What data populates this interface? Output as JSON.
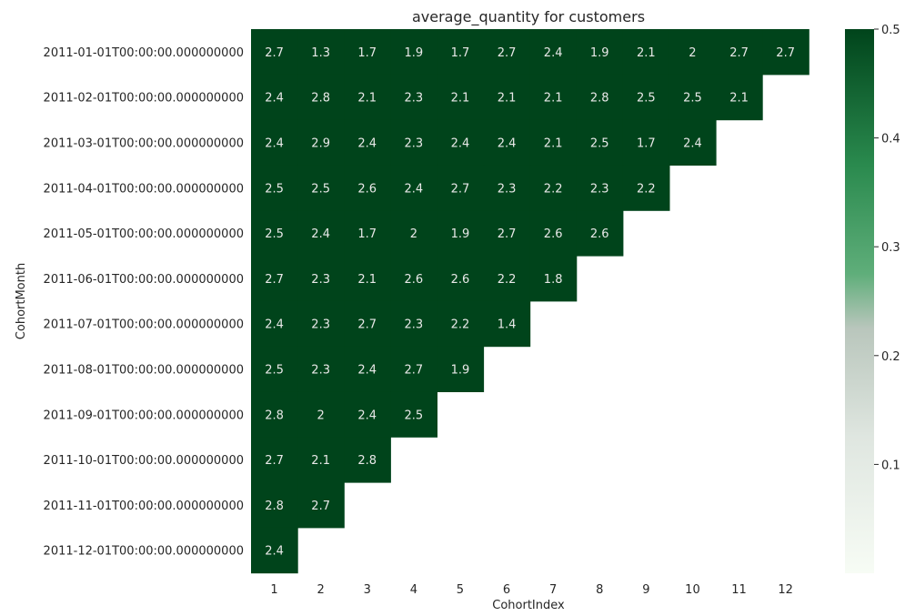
{
  "chart_data": {
    "type": "heatmap",
    "title": "average_quantity for customers",
    "xlabel": "CohortIndex",
    "ylabel": "CohortMonth",
    "x_categories": [
      "1",
      "2",
      "3",
      "4",
      "5",
      "6",
      "7",
      "8",
      "9",
      "10",
      "11",
      "12"
    ],
    "y_categories": [
      "2011-01-01T00:00:00.000000000",
      "2011-02-01T00:00:00.000000000",
      "2011-03-01T00:00:00.000000000",
      "2011-04-01T00:00:00.000000000",
      "2011-05-01T00:00:00.000000000",
      "2011-06-01T00:00:00.000000000",
      "2011-07-01T00:00:00.000000000",
      "2011-08-01T00:00:00.000000000",
      "2011-09-01T00:00:00.000000000",
      "2011-10-01T00:00:00.000000000",
      "2011-11-01T00:00:00.000000000",
      "2011-12-01T00:00:00.000000000"
    ],
    "values": [
      [
        "2.7",
        "1.3",
        "1.7",
        "1.9",
        "1.7",
        "2.7",
        "2.4",
        "1.9",
        "2.1",
        "2",
        "2.7",
        "2.7"
      ],
      [
        "2.4",
        "2.8",
        "2.1",
        "2.3",
        "2.1",
        "2.1",
        "2.1",
        "2.8",
        "2.5",
        "2.5",
        "2.1"
      ],
      [
        "2.4",
        "2.9",
        "2.4",
        "2.3",
        "2.4",
        "2.4",
        "2.1",
        "2.5",
        "1.7",
        "2.4"
      ],
      [
        "2.5",
        "2.5",
        "2.6",
        "2.4",
        "2.7",
        "2.3",
        "2.2",
        "2.3",
        "2.2"
      ],
      [
        "2.5",
        "2.4",
        "1.7",
        "2",
        "1.9",
        "2.7",
        "2.6",
        "2.6"
      ],
      [
        "2.7",
        "2.3",
        "2.1",
        "2.6",
        "2.6",
        "2.2",
        "1.8"
      ],
      [
        "2.4",
        "2.3",
        "2.7",
        "2.3",
        "2.2",
        "1.4"
      ],
      [
        "2.5",
        "2.3",
        "2.4",
        "2.7",
        "1.9"
      ],
      [
        "2.8",
        "2",
        "2.4",
        "2.5"
      ],
      [
        "2.7",
        "2.1",
        "2.8"
      ],
      [
        "2.8",
        "2.7"
      ],
      [
        "2.4"
      ]
    ],
    "colorbar": {
      "min": 0,
      "max": 0.5,
      "ticks": [
        "0.1",
        "0.2",
        "0.3",
        "0.4",
        "0.5"
      ],
      "tick_values": [
        0.1,
        0.2,
        0.3,
        0.4,
        0.5
      ]
    },
    "colors": {
      "cell": "#00441b",
      "cell_text": "#e8e8e8",
      "colormap": [
        "#f7fcf5",
        "#c7d0c9",
        "#41ab5d",
        "#238b45",
        "#00441b"
      ]
    }
  }
}
